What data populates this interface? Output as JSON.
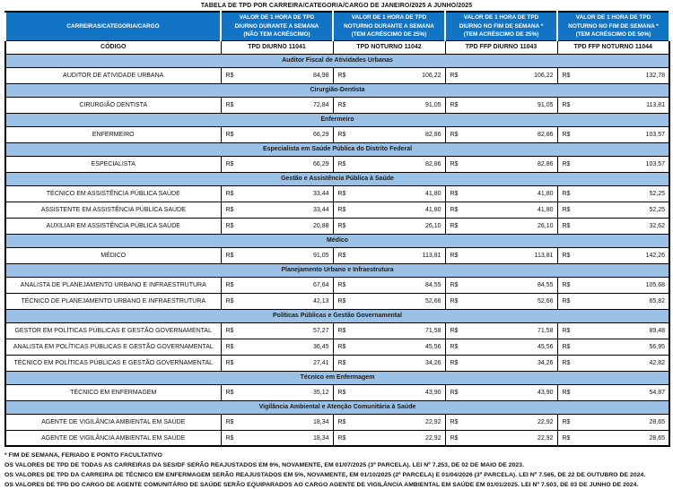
{
  "title": "TABELA DE TPD POR CARREIRA/CATEGORIA/CARGO DE JANEIRO/2025 A JUNHO/2025",
  "colors": {
    "header_bg": "#1274C5",
    "band_bg": "#9BC2E6",
    "header_text": "#FFFFFF",
    "border": "#000000"
  },
  "table": {
    "currency": "R$",
    "columns": [
      {
        "header": "CARREIRAS/CATEGORIA/CARGO",
        "code": "CÓDIGO"
      },
      {
        "header": "VALOR DE 1 HORA DE TPD DIURNO DURANTE A SEMANA (NÃO TEM ACRÉSCIMO)",
        "code": "TPD DIURNO 11041"
      },
      {
        "header": "VALOR DE 1 HORA DE TPD NOTURNO DURANTE A SEMANA (TEM ACRÉSCIMO DE 25%)",
        "code": "TPD NOTURNO 11042"
      },
      {
        "header": "VALOR DE 1 HORA DE TPD DIURNO NO FIM DE SEMANA * (TEM ACRÉSCIMO DE 25%)",
        "code": "TPD FFP DIURNO 11043"
      },
      {
        "header": "VALOR DE 1 HORA DE TPD NOTURNO NO FIM DE SEMANA * (TEM ACRÉSCIMO DE 50%)",
        "code": "TPD FFP NOTURNO 11044"
      }
    ],
    "sections": [
      {
        "name": "Auditor Fiscal de Atividades Urbanas",
        "rows": [
          {
            "label": "AUDITOR DE ATIVIDADE URBANA",
            "values": [
              "84,98",
              "106,22",
              "106,22",
              "132,78"
            ]
          }
        ]
      },
      {
        "name": "Cirurgião-Dentista",
        "rows": [
          {
            "label": "CIRURGIÃO DENTISTA",
            "values": [
              "72,84",
              "91,05",
              "91,05",
              "113,81"
            ]
          }
        ]
      },
      {
        "name": "Enfermeiro",
        "rows": [
          {
            "label": "ENFERMEIRO",
            "values": [
              "66,29",
              "82,86",
              "82,86",
              "103,57"
            ]
          }
        ]
      },
      {
        "name": "Especialista em Saúde Pública do Distrito Federal",
        "rows": [
          {
            "label": "ESPECIALISTA",
            "values": [
              "66,29",
              "82,86",
              "82,86",
              "103,57"
            ]
          }
        ]
      },
      {
        "name": "Gestão e Assistência Pública à Saúde",
        "rows": [
          {
            "label": "TÉCNICO EM ASSISTÊNCIA PÚBLICA SAÚDE",
            "values": [
              "33,44",
              "41,80",
              "41,80",
              "52,25"
            ]
          },
          {
            "label": "ASSISTENTE EM ASSISTÊNCIA PÚBLICA SAÚDE",
            "values": [
              "33,44",
              "41,80",
              "41,80",
              "52,25"
            ]
          },
          {
            "label": "AUXILIAR EM ASSISTÊNCIA PÚBLICA SAÚDE",
            "values": [
              "20,88",
              "26,10",
              "26,10",
              "32,62"
            ]
          }
        ]
      },
      {
        "name": "Médico",
        "rows": [
          {
            "label": "MÉDICO",
            "values": [
              "91,05",
              "113,81",
              "113,81",
              "142,26"
            ]
          }
        ]
      },
      {
        "name": "Planejamento Urbano e Infraestrutura",
        "rows": [
          {
            "label": "ANALISTA DE PLANEJAMENTO URBANO E INFRAESTRUTURA",
            "values": [
              "67,64",
              "84,55",
              "84,55",
              "105,68"
            ]
          },
          {
            "label": "TÉCNICO DE PLANEJAMENTO URBANO E INFRAESTRUTURA",
            "values": [
              "42,13",
              "52,66",
              "52,66",
              "65,82"
            ]
          }
        ]
      },
      {
        "name": "Políticas Públicas e Gestão Governamental",
        "rows": [
          {
            "label": "GESTOR EM POLÍTICAS PÚBLICAS E GESTÃO GOVERNAMENTAL",
            "values": [
              "57,27",
              "71,58",
              "71,58",
              "89,48"
            ]
          },
          {
            "label": "ANALISTA EM POLÍTICAS PÚBLICAS E GESTÃO GOVERNAMENTAL",
            "values": [
              "36,45",
              "45,56",
              "45,56",
              "56,95"
            ]
          },
          {
            "label": "TÉCNICO EM POLÍTICAS PÚBLICAS E GESTÃO GOVERNAMENTAL",
            "values": [
              "27,41",
              "34,26",
              "34,26",
              "42,82"
            ]
          }
        ]
      },
      {
        "name": "Técnico em Enfermagem",
        "rows": [
          {
            "label": "TÉCNICO EM ENFERMAGEM",
            "values": [
              "35,12",
              "43,90",
              "43,90",
              "54,87"
            ]
          }
        ]
      },
      {
        "name": "Vigilância Ambiental e Atenção Comunitária à Saúde",
        "rows": [
          {
            "label": "AGENTE DE VIGILÂNCIA AMBIENTAL EM SAÚDE",
            "values": [
              "18,34",
              "22,92",
              "22,92",
              "28,65"
            ]
          },
          {
            "label": "AGENTE DE VIGILÂNCIA AMBIENTAL EM SAÚDE",
            "values": [
              "18,34",
              "22,92",
              "22,92",
              "28,65"
            ]
          }
        ]
      }
    ]
  },
  "footnotes": [
    "* FIM DE SEMANA, FERIADO E PONTO FACULTATIVO",
    "OS VALORES DE TPD DE TODAS AS CARREIRAS DA SES/DF SERÃO REAJUSTADOS EM 6%, NOVAMENTE, EM 01/07/2025 (3ª PARCELA). LEI Nº 7.253, DE 02 DE MAIO DE 2023.",
    "OS VALORES DE TPD DA CARREIRA DE TÉCNICO EM ENFERMAGEM SERÃO REAJUSTADOS EM 5%, NOVAMENTE, EM 01/10/2025 (2ª PARCELA) E 01/04/2026 (3ª PARCELA). LEI Nº 7.565, DE 22 DE OUTUBRO DE 2024.",
    "OS VALORES DE TPD DO CARGO DE AGENTE COMUNITÁRIO DE SAÚDE SERÃO EQUIPARADOS AO CARGO AGENTE DE VIGILÂNCIA AMBIENTAL EM SAÚDE EM 01/01/2025. LEI Nº 7.503, DE 03 DE JUNHO DE 2024."
  ]
}
